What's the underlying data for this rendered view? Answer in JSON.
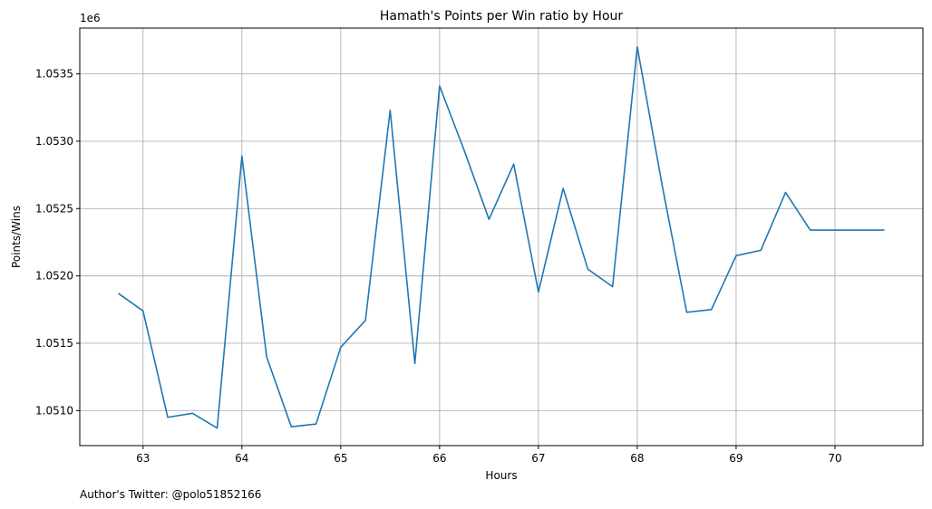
{
  "chart_data": {
    "type": "line",
    "title": "Hamath's Points per Win ratio by Hour",
    "xlabel": "Hours",
    "ylabel": "Points/Wins",
    "y_offset_label": "1e6",
    "xlim": [
      62.36,
      70.89
    ],
    "ylim": [
      1.05074,
      1.05384
    ],
    "x_ticks": [
      63,
      64,
      65,
      66,
      67,
      68,
      69,
      70
    ],
    "y_ticks": [
      1.051,
      1.0515,
      1.052,
      1.0525,
      1.053,
      1.0535
    ],
    "y_tick_labels": [
      "1.0510",
      "1.0515",
      "1.0520",
      "1.0525",
      "1.0530",
      "1.0535"
    ],
    "grid": true,
    "line_color": "#1f77b4",
    "series": [
      {
        "x": [
          62.75,
          63.0,
          63.25,
          63.5,
          63.75,
          64.0,
          64.25,
          64.5,
          64.75,
          65.0,
          65.25,
          65.5,
          65.75,
          66.0,
          66.25,
          66.5,
          66.75,
          67.0,
          67.25,
          67.5,
          67.75,
          68.0,
          68.25,
          68.5,
          68.75,
          69.0,
          69.25,
          69.5,
          69.75,
          70.0,
          70.25,
          70.5
        ],
        "y": [
          1.05187,
          1.05174,
          1.05095,
          1.05098,
          1.05087,
          1.05289,
          1.0514,
          1.05088,
          1.0509,
          1.05147,
          1.05167,
          1.05323,
          1.05135,
          1.05341,
          1.05293,
          1.05242,
          1.05283,
          1.05188,
          1.05265,
          1.05205,
          1.05192,
          1.0537,
          1.05268,
          1.05173,
          1.05175,
          1.05215,
          1.05219,
          1.05262,
          1.05234,
          1.05234,
          1.05234,
          1.05234
        ]
      }
    ]
  },
  "footnote": "Author's Twitter: @polo51852166"
}
